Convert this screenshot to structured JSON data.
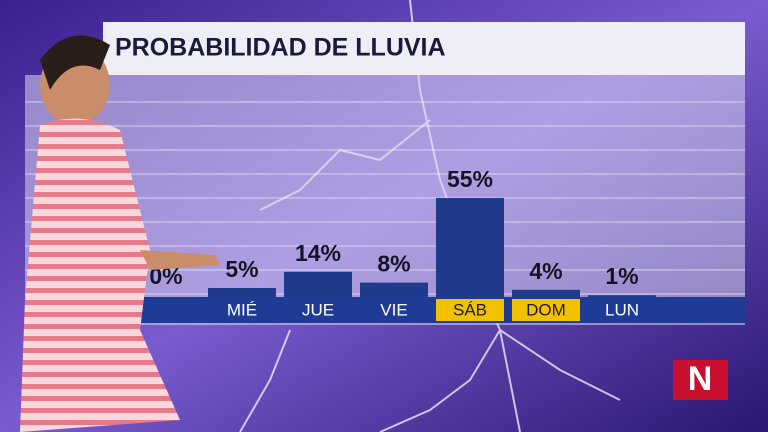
{
  "chart_data": {
    "type": "bar",
    "title": "PROBABILIDAD DE LLUVIA",
    "categories": [
      null,
      "MIÉ",
      "JUE",
      "VIE",
      "SÁB",
      "DOM",
      "LUN"
    ],
    "values": [
      0,
      5,
      14,
      8,
      55,
      4,
      1
    ],
    "value_labels": [
      "0%",
      "5%",
      "14%",
      "8%",
      "55%",
      "4%",
      "1%"
    ],
    "color": "#1f3a8a",
    "label_colors": [
      "#1e3c96",
      "#1e3c96",
      "#1e3c96",
      "#1e3c96",
      "#f2c200",
      "#f2c200",
      "#1e3c96"
    ],
    "ylim": [
      0,
      100
    ],
    "grid": true
  },
  "logo": {
    "text": "N"
  }
}
